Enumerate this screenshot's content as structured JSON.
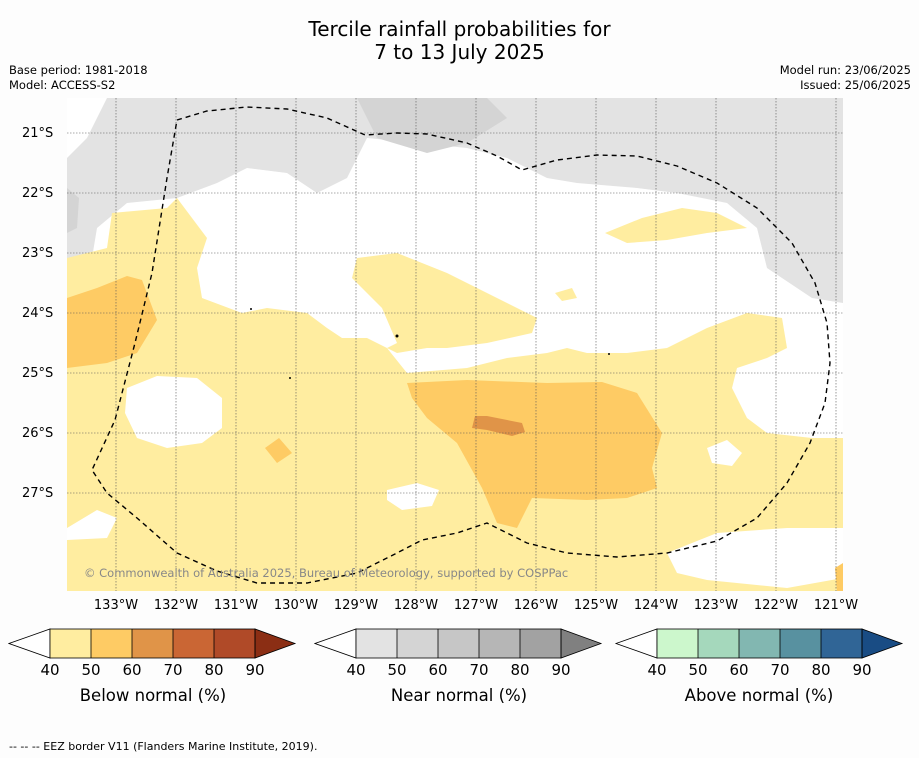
{
  "title_line1": "Tercile rainfall probabilities for",
  "title_line2": "7 to 13 July 2025",
  "base_period": "Base period: 1981-2018",
  "model": "Model: ACCESS-S2",
  "model_run": "Model run: 23/06/2025",
  "issued": "Issued: 25/06/2025",
  "copyright": "© Commonwealth of Australia 2025, Bureau of Meteorology, supported by COSPPac",
  "lat_labels": [
    "21°S",
    "22°S",
    "23°S",
    "24°S",
    "25°S",
    "26°S",
    "27°S"
  ],
  "lon_labels": [
    "133°W",
    "132°W",
    "131°W",
    "130°W",
    "129°W",
    "128°W",
    "127°W",
    "126°W",
    "125°W",
    "124°W",
    "123°W",
    "122°W",
    "121°W"
  ],
  "colorbars": [
    {
      "label": "Below normal (%)",
      "ticks": [
        "40",
        "50",
        "60",
        "70",
        "80",
        "90"
      ],
      "colors": [
        "#ffffff",
        "#ffeda0",
        "#fecb64",
        "#e09448",
        "#ca6634",
        "#b04a28",
        "#8b2e14"
      ]
    },
    {
      "label": "Near normal (%)",
      "ticks": [
        "40",
        "50",
        "60",
        "70",
        "80",
        "90"
      ],
      "colors": [
        "#ffffff",
        "#e3e3e3",
        "#d4d4d4",
        "#c6c6c6",
        "#b6b6b6",
        "#a2a2a2",
        "#808080"
      ]
    },
    {
      "label": "Above normal (%)",
      "ticks": [
        "40",
        "50",
        "60",
        "70",
        "80",
        "90"
      ],
      "colors": [
        "#ffffff",
        "#ccf7cc",
        "#a5d8bc",
        "#82b7b1",
        "#5891a0",
        "#306596",
        "#194c84"
      ]
    }
  ],
  "footer": "--  --  -- EEZ border V11 (Flanders Marine Institute, 2019)."
}
